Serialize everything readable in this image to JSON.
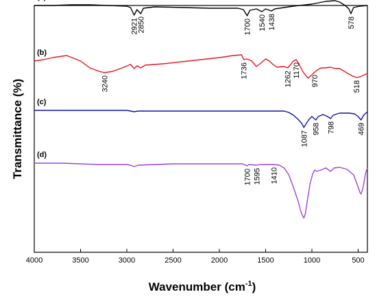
{
  "chart_data": {
    "type": "line",
    "xlabel": "Wavenumber (cm",
    "xlabel_sup": "-1",
    "xlabel_close": ")",
    "ylabel": "Transmittance (%)",
    "xlim": [
      4000,
      400
    ],
    "xticks": [
      4000,
      3500,
      3000,
      2500,
      2000,
      1500,
      1000,
      500
    ],
    "grid": false,
    "series": [
      {
        "name": "(a)",
        "color": "#000000",
        "offset": 0,
        "points": [
          [
            4000,
            44
          ],
          [
            3800,
            44
          ],
          [
            3600,
            43
          ],
          [
            3400,
            43
          ],
          [
            3200,
            44
          ],
          [
            3000,
            45
          ],
          [
            2960,
            47
          ],
          [
            2921,
            58
          ],
          [
            2890,
            50
          ],
          [
            2850,
            56
          ],
          [
            2820,
            48
          ],
          [
            2700,
            46
          ],
          [
            2400,
            47
          ],
          [
            2100,
            48
          ],
          [
            1800,
            48
          ],
          [
            1740,
            50
          ],
          [
            1700,
            59
          ],
          [
            1670,
            51
          ],
          [
            1600,
            49
          ],
          [
            1540,
            53
          ],
          [
            1500,
            49
          ],
          [
            1438,
            52
          ],
          [
            1400,
            49
          ],
          [
            1200,
            45
          ],
          [
            1000,
            42
          ],
          [
            850,
            38
          ],
          [
            750,
            37
          ],
          [
            700,
            39
          ],
          [
            640,
            44
          ],
          [
            600,
            49
          ],
          [
            578,
            56
          ],
          [
            550,
            47
          ],
          [
            480,
            45
          ],
          [
            400,
            44
          ]
        ],
        "annotations": [
          {
            "label": "2921",
            "x": 2921
          },
          {
            "label": "2850",
            "x": 2850
          },
          {
            "label": "1700",
            "x": 1700
          },
          {
            "label": "1540",
            "x": 1540
          },
          {
            "label": "1438",
            "x": 1438
          },
          {
            "label": "578",
            "x": 578
          }
        ]
      },
      {
        "name": "(b)",
        "color": "#e8141c",
        "offset": 65,
        "points": [
          [
            4000,
            60
          ],
          [
            3900,
            58
          ],
          [
            3800,
            55
          ],
          [
            3700,
            53
          ],
          [
            3650,
            52
          ],
          [
            3500,
            60
          ],
          [
            3400,
            70
          ],
          [
            3300,
            75
          ],
          [
            3240,
            77
          ],
          [
            3150,
            75
          ],
          [
            3050,
            70
          ],
          [
            2960,
            65
          ],
          [
            2921,
            71
          ],
          [
            2890,
            67
          ],
          [
            2850,
            70
          ],
          [
            2800,
            66
          ],
          [
            2600,
            64
          ],
          [
            2400,
            61
          ],
          [
            2200,
            58
          ],
          [
            2000,
            55
          ],
          [
            1850,
            52
          ],
          [
            1760,
            51
          ],
          [
            1736,
            58
          ],
          [
            1700,
            57
          ],
          [
            1650,
            60
          ],
          [
            1600,
            68
          ],
          [
            1560,
            64
          ],
          [
            1500,
            57
          ],
          [
            1460,
            60
          ],
          [
            1420,
            65
          ],
          [
            1380,
            69
          ],
          [
            1300,
            68
          ],
          [
            1262,
            70
          ],
          [
            1230,
            65
          ],
          [
            1200,
            60
          ],
          [
            1170,
            58
          ],
          [
            1140,
            64
          ],
          [
            1100,
            75
          ],
          [
            1060,
            82
          ],
          [
            1040,
            85
          ],
          [
            1000,
            80
          ],
          [
            970,
            76
          ],
          [
            940,
            73
          ],
          [
            900,
            70
          ],
          [
            850,
            70
          ],
          [
            800,
            69
          ],
          [
            750,
            71
          ],
          [
            700,
            71
          ],
          [
            650,
            75
          ],
          [
            600,
            79
          ],
          [
            560,
            82
          ],
          [
            518,
            84
          ],
          [
            480,
            83
          ],
          [
            430,
            80
          ],
          [
            400,
            78
          ]
        ],
        "annotations": [
          {
            "label": "3240",
            "x": 3240
          },
          {
            "label": "1736",
            "x": 1736
          },
          {
            "label": "1262",
            "x": 1262
          },
          {
            "label": "1170",
            "x": 1170
          },
          {
            "label": "970",
            "x": 970
          },
          {
            "label": "518",
            "x": 518
          }
        ]
      },
      {
        "name": "(c)",
        "color": "#0a14a0",
        "offset": 154,
        "points": [
          [
            4000,
            43
          ],
          [
            3500,
            43
          ],
          [
            3000,
            43
          ],
          [
            2960,
            44
          ],
          [
            2921,
            45
          ],
          [
            2880,
            44
          ],
          [
            2500,
            44
          ],
          [
            2000,
            44
          ],
          [
            1500,
            44
          ],
          [
            1300,
            44
          ],
          [
            1250,
            46
          ],
          [
            1200,
            50
          ],
          [
            1150,
            56
          ],
          [
            1110,
            62
          ],
          [
            1087,
            68
          ],
          [
            1060,
            62
          ],
          [
            1030,
            56
          ],
          [
            1000,
            52
          ],
          [
            958,
            57
          ],
          [
            930,
            52
          ],
          [
            880,
            49
          ],
          [
            830,
            52
          ],
          [
            798,
            55
          ],
          [
            770,
            50
          ],
          [
            700,
            47
          ],
          [
            600,
            47
          ],
          [
            540,
            48
          ],
          [
            500,
            52
          ],
          [
            469,
            57
          ],
          [
            440,
            50
          ],
          [
            400,
            45
          ]
        ],
        "annotations": [
          {
            "label": "1087",
            "x": 1087
          },
          {
            "label": "958",
            "x": 958
          },
          {
            "label": "798",
            "x": 798
          },
          {
            "label": "469",
            "x": 469
          }
        ]
      },
      {
        "name": "(d)",
        "color": "#a040e0",
        "offset": 229,
        "points": [
          [
            4000,
            45
          ],
          [
            3700,
            45
          ],
          [
            3500,
            46
          ],
          [
            3300,
            47
          ],
          [
            3000,
            47
          ],
          [
            2960,
            48
          ],
          [
            2921,
            50
          ],
          [
            2880,
            48
          ],
          [
            2500,
            46
          ],
          [
            2000,
            46
          ],
          [
            1750,
            46
          ],
          [
            1700,
            49
          ],
          [
            1680,
            47
          ],
          [
            1595,
            48
          ],
          [
            1560,
            47
          ],
          [
            1410,
            47
          ],
          [
            1350,
            48
          ],
          [
            1300,
            52
          ],
          [
            1250,
            62
          ],
          [
            1200,
            80
          ],
          [
            1150,
            100
          ],
          [
            1120,
            115
          ],
          [
            1100,
            122
          ],
          [
            1087,
            125
          ],
          [
            1070,
            118
          ],
          [
            1050,
            100
          ],
          [
            1020,
            75
          ],
          [
            990,
            60
          ],
          [
            970,
            55
          ],
          [
            950,
            57
          ],
          [
            900,
            55
          ],
          [
            850,
            52
          ],
          [
            798,
            57
          ],
          [
            760,
            52
          ],
          [
            700,
            51
          ],
          [
            620,
            54
          ],
          [
            550,
            62
          ],
          [
            500,
            80
          ],
          [
            480,
            88
          ],
          [
            469,
            90
          ],
          [
            450,
            82
          ],
          [
            420,
            60
          ],
          [
            400,
            52
          ]
        ],
        "annotations": [
          {
            "label": "1700",
            "x": 1700
          },
          {
            "label": "1595",
            "x": 1595
          },
          {
            "label": "1410",
            "x": 1410
          }
        ]
      }
    ]
  }
}
